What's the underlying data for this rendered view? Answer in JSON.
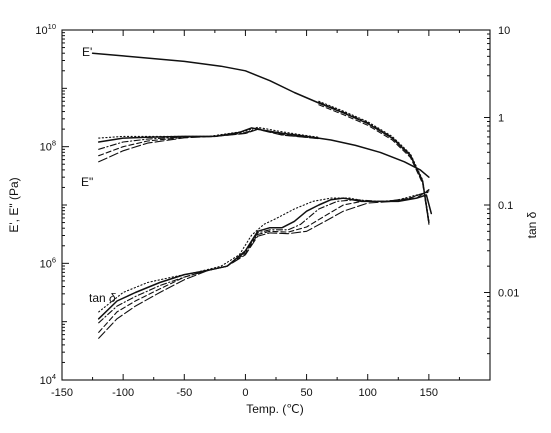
{
  "chart_data": {
    "type": "line",
    "title": "",
    "xlabel": "Temp. (℃)",
    "ylabel": "E', E\" (Pa)",
    "ylabel_right": "tan δ",
    "xlim": [
      -150,
      200
    ],
    "ylim": [
      10000,
      10000000000
    ],
    "ylim_right": [
      0.001,
      10
    ],
    "yscale": "log",
    "yscale_right": "log",
    "grid": false,
    "legend": "none",
    "x_ticks": [
      "-150",
      "-100",
      "-50",
      "0",
      "50",
      "100",
      "150"
    ],
    "x_tick_values": [
      -150,
      -100,
      -50,
      0,
      50,
      100,
      150
    ],
    "y_ticks_left": [
      {
        "base": "10",
        "exp": "4",
        "value": 10000
      },
      {
        "base": "10",
        "exp": "6",
        "value": 1000000
      },
      {
        "base": "10",
        "exp": "8",
        "value": 100000000
      },
      {
        "base": "10",
        "exp": "10",
        "value": 10000000000
      }
    ],
    "y_ticks_right": [
      {
        "label": "0.01",
        "value": 0.01
      },
      {
        "label": "0.1",
        "value": 0.1
      },
      {
        "label": "1",
        "value": 1
      },
      {
        "label": "10",
        "value": 10
      }
    ],
    "series_labels": [
      {
        "id": "e-prime",
        "text": "E'"
      },
      {
        "id": "e-double-prime",
        "text": "E\""
      },
      {
        "id": "tan-delta",
        "prefix": "tan ",
        "symbol": "δ"
      }
    ],
    "series": [
      {
        "id": "E1",
        "axis": "left",
        "style": "solid",
        "points": [
          [
            -125,
            4000000000
          ],
          [
            -100,
            3600000000
          ],
          [
            -50,
            2900000000
          ],
          [
            -20,
            2400000000
          ],
          [
            0,
            2000000000
          ],
          [
            20,
            1350000000
          ],
          [
            40,
            850000000
          ],
          [
            60,
            560000000
          ],
          [
            80,
            380000000
          ],
          [
            100,
            250000000
          ],
          [
            120,
            140000000
          ],
          [
            135,
            70000000
          ],
          [
            145,
            25000000
          ],
          [
            150,
            5000000
          ]
        ],
        "variants": [
          {
            "style": "dot",
            "dy": 0.03,
            "x_from": 60
          },
          {
            "style": "dash",
            "dy": -0.03,
            "x_from": 60
          },
          {
            "style": "dashdot",
            "dy": 0.015,
            "x_from": 60
          }
        ]
      },
      {
        "id": "E2",
        "axis": "left",
        "style": "solid",
        "points": [
          [
            -120,
            120000000
          ],
          [
            -100,
            140000000
          ],
          [
            -80,
            145000000
          ],
          [
            -50,
            150000000
          ],
          [
            -25,
            150000000
          ],
          [
            -5,
            175000000
          ],
          [
            5,
            210000000
          ],
          [
            15,
            190000000
          ],
          [
            30,
            170000000
          ],
          [
            50,
            150000000
          ],
          [
            70,
            130000000
          ],
          [
            90,
            105000000
          ],
          [
            110,
            80000000
          ],
          [
            130,
            55000000
          ],
          [
            143,
            40000000
          ],
          [
            150,
            30000000
          ]
        ],
        "variants": [
          {
            "style": "dot",
            "x_to": 60,
            "lows": [
              [
                -120,
                140000000
              ],
              [
                -100,
                150000000
              ],
              [
                -80,
                150000000
              ],
              [
                -60,
                150000000
              ],
              [
                -30,
                150000000
              ],
              [
                0,
                185000000
              ],
              [
                10,
                215000000
              ],
              [
                30,
                180000000
              ],
              [
                50,
                155000000
              ],
              [
                60,
                145000000
              ]
            ]
          },
          {
            "style": "dashdot",
            "x_to": 60,
            "lows": [
              [
                -120,
                90000000
              ],
              [
                -100,
                120000000
              ],
              [
                -80,
                135000000
              ],
              [
                -50,
                147000000
              ],
              [
                -25,
                150000000
              ],
              [
                0,
                175000000
              ],
              [
                10,
                205000000
              ],
              [
                30,
                165000000
              ],
              [
                50,
                148000000
              ],
              [
                60,
                140000000
              ]
            ]
          },
          {
            "style": "dash",
            "x_to": 60,
            "lows": [
              [
                -120,
                70000000
              ],
              [
                -100,
                100000000
              ],
              [
                -80,
                125000000
              ],
              [
                -50,
                145000000
              ],
              [
                -25,
                150000000
              ],
              [
                0,
                170000000
              ],
              [
                10,
                200000000
              ],
              [
                30,
                160000000
              ],
              [
                50,
                145000000
              ],
              [
                60,
                138000000
              ]
            ]
          },
          {
            "style": "longdash",
            "x_to": 60,
            "lows": [
              [
                -120,
                55000000
              ],
              [
                -100,
                85000000
              ],
              [
                -80,
                115000000
              ],
              [
                -50,
                142000000
              ],
              [
                -25,
                150000000
              ],
              [
                0,
                168000000
              ],
              [
                10,
                198000000
              ],
              [
                30,
                158000000
              ],
              [
                50,
                144000000
              ],
              [
                60,
                137000000
              ]
            ]
          }
        ]
      },
      {
        "id": "tan",
        "axis": "right",
        "style": "solid",
        "points": [
          [
            -120,
            0.005
          ],
          [
            -105,
            0.008
          ],
          [
            -90,
            0.01
          ],
          [
            -70,
            0.013
          ],
          [
            -50,
            0.016
          ],
          [
            -30,
            0.018
          ],
          [
            -15,
            0.02
          ],
          [
            0,
            0.03
          ],
          [
            10,
            0.05
          ],
          [
            20,
            0.055
          ],
          [
            30,
            0.055
          ],
          [
            40,
            0.065
          ],
          [
            50,
            0.085
          ],
          [
            60,
            0.1
          ],
          [
            70,
            0.115
          ],
          [
            80,
            0.12
          ],
          [
            95,
            0.11
          ],
          [
            110,
            0.11
          ],
          [
            125,
            0.11
          ],
          [
            140,
            0.12
          ],
          [
            148,
            0.13
          ],
          [
            152,
            0.08
          ]
        ],
        "variants": [
          {
            "style": "dot",
            "pts": [
              [
                -120,
                0.006
              ],
              [
                -100,
                0.01
              ],
              [
                -80,
                0.013
              ],
              [
                -60,
                0.015
              ],
              [
                -40,
                0.017
              ],
              [
                -20,
                0.02
              ],
              [
                -5,
                0.027
              ],
              [
                5,
                0.045
              ],
              [
                15,
                0.06
              ],
              [
                25,
                0.07
              ],
              [
                40,
                0.09
              ],
              [
                55,
                0.11
              ],
              [
                70,
                0.12
              ],
              [
                85,
                0.12
              ],
              [
                100,
                0.11
              ],
              [
                120,
                0.11
              ],
              [
                140,
                0.13
              ],
              [
                150,
                0.14
              ]
            ]
          },
          {
            "style": "dashdot",
            "pts": [
              [
                -120,
                0.0045
              ],
              [
                -105,
                0.007
              ],
              [
                -90,
                0.009
              ],
              [
                -70,
                0.012
              ],
              [
                -50,
                0.015
              ],
              [
                -30,
                0.018
              ],
              [
                -15,
                0.02
              ],
              [
                0,
                0.029
              ],
              [
                10,
                0.048
              ],
              [
                20,
                0.052
              ],
              [
                35,
                0.052
              ],
              [
                45,
                0.06
              ],
              [
                60,
                0.09
              ],
              [
                75,
                0.11
              ],
              [
                90,
                0.115
              ],
              [
                110,
                0.11
              ],
              [
                130,
                0.115
              ],
              [
                148,
                0.14
              ]
            ]
          },
          {
            "style": "dash",
            "pts": [
              [
                -120,
                0.0035
              ],
              [
                -105,
                0.006
              ],
              [
                -90,
                0.008
              ],
              [
                -70,
                0.011
              ],
              [
                -50,
                0.015
              ],
              [
                -30,
                0.018
              ],
              [
                -15,
                0.02
              ],
              [
                0,
                0.028
              ],
              [
                10,
                0.046
              ],
              [
                20,
                0.05
              ],
              [
                35,
                0.049
              ],
              [
                50,
                0.056
              ],
              [
                65,
                0.075
              ],
              [
                80,
                0.1
              ],
              [
                95,
                0.11
              ],
              [
                115,
                0.11
              ],
              [
                135,
                0.12
              ],
              [
                150,
                0.145
              ]
            ]
          },
          {
            "style": "longdash",
            "pts": [
              [
                -120,
                0.003
              ],
              [
                -105,
                0.005
              ],
              [
                -90,
                0.007
              ],
              [
                -70,
                0.01
              ],
              [
                -50,
                0.014
              ],
              [
                -30,
                0.018
              ],
              [
                -15,
                0.02
              ],
              [
                0,
                0.027
              ],
              [
                10,
                0.044
              ],
              [
                20,
                0.048
              ],
              [
                35,
                0.047
              ],
              [
                50,
                0.05
              ],
              [
                65,
                0.065
              ],
              [
                80,
                0.085
              ],
              [
                100,
                0.105
              ],
              [
                120,
                0.11
              ],
              [
                140,
                0.12
              ],
              [
                150,
                0.15
              ]
            ]
          }
        ]
      }
    ]
  }
}
